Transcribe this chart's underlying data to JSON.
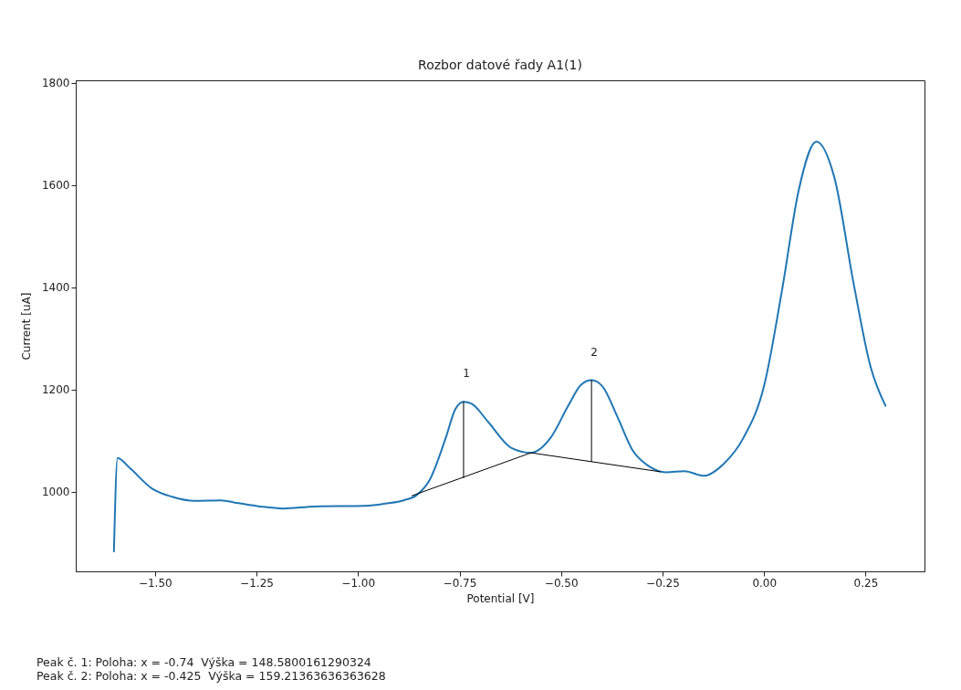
{
  "chart_data": {
    "type": "line",
    "title": "Rozbor datové řady A1(1)",
    "xlabel": "Potential [V]",
    "ylabel": "Current [uA]",
    "xlim": [
      -1.695,
      0.395
    ],
    "ylim": [
      844,
      1805
    ],
    "xticks": [
      {
        "value": -1.5,
        "label": "−1.50"
      },
      {
        "value": -1.25,
        "label": "−1.25"
      },
      {
        "value": -1.0,
        "label": "−1.00"
      },
      {
        "value": -0.75,
        "label": "−0.75"
      },
      {
        "value": -0.5,
        "label": "−0.50"
      },
      {
        "value": -0.25,
        "label": "−0.25"
      },
      {
        "value": 0,
        "label": "0.00"
      },
      {
        "value": 0.25,
        "label": "0.25"
      }
    ],
    "yticks": [
      1000,
      1200,
      1400,
      1600,
      1800
    ],
    "grid": false,
    "series": [
      {
        "type": "line",
        "color": "#1f77b4",
        "x": [
          -1.601,
          -1.592,
          -1.563,
          -1.507,
          -1.458,
          -1.402,
          -1.338,
          -1.298,
          -1.241,
          -1.185,
          -1.105,
          -0.984,
          -0.928,
          -0.888,
          -0.856,
          -0.824,
          -0.784,
          -0.76,
          -0.74,
          -0.72,
          -0.68,
          -0.623,
          -0.574,
          -0.526,
          -0.481,
          -0.451,
          -0.425,
          -0.398,
          -0.361,
          -0.324,
          -0.286,
          -0.241,
          -0.196,
          -0.148,
          -0.1,
          -0.051,
          0.0,
          0.045,
          0.085,
          0.129,
          0.173,
          0.221,
          0.262,
          0.299
        ],
        "values": [
          883,
          1066,
          1047,
          1006,
          990,
          982,
          983,
          978,
          971,
          967,
          971,
          972,
          977,
          983,
          993,
          1022,
          1105,
          1162,
          1176,
          1172,
          1137,
          1086,
          1076,
          1105,
          1170,
          1209,
          1218,
          1206,
          1146,
          1081,
          1051,
          1038,
          1040,
          1031,
          1054,
          1105,
          1207,
          1398,
          1589,
          1685,
          1615,
          1405,
          1245,
          1168
        ]
      },
      {
        "type": "line",
        "color": "#000000",
        "x": [
          -0.867,
          -0.574,
          -0.256
        ],
        "values": [
          992,
          1076,
          1039
        ]
      },
      {
        "type": "line",
        "color": "#000000",
        "x": [
          -0.74,
          -0.74
        ],
        "values": [
          1027,
          1176
        ]
      },
      {
        "type": "line",
        "color": "#000000",
        "x": [
          -0.425,
          -0.425
        ],
        "values": [
          1059,
          1218
        ]
      }
    ],
    "annotations": [
      {
        "text": "1",
        "x": -0.74,
        "y": 1176
      },
      {
        "text": "2",
        "x": -0.425,
        "y": 1218
      },
      "Peak č. 1: Poloha: x = -0.74  Výška = 148.5800161290324",
      "Peak č. 2: Poloha: x = -0.425  Výška = 159.21363636363628"
    ]
  }
}
